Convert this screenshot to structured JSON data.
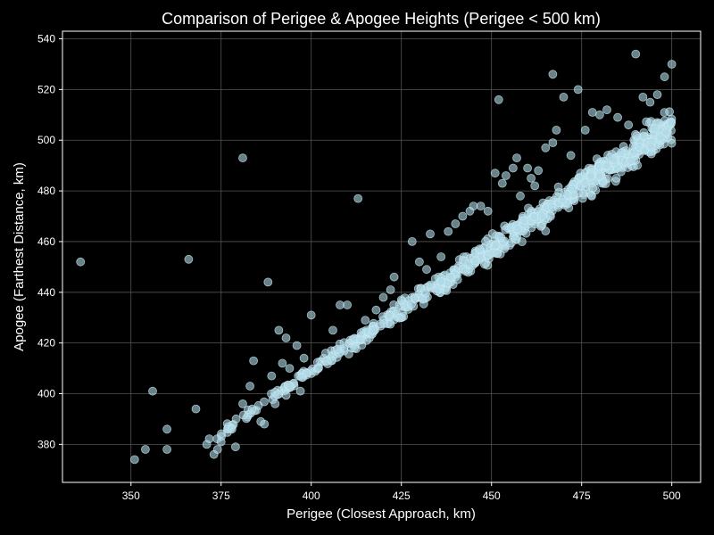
{
  "chart_data": {
    "type": "scatter",
    "title": "Comparison of Perigee & Apogee Heights (Perigee < 500 km)",
    "xlabel": "Perigee (Closest Approach, km)",
    "ylabel": "Apogee (Farthest Distance, km)",
    "xlim": [
      331,
      508
    ],
    "ylim": [
      365,
      543
    ],
    "xticks": [
      350,
      375,
      400,
      425,
      450,
      475,
      500
    ],
    "yticks": [
      380,
      400,
      420,
      440,
      460,
      480,
      500,
      520,
      540
    ],
    "grid": true,
    "colors": {
      "background": "#000000",
      "axes": "#ffffff",
      "grid": "#555555",
      "point_fill": "#add8e6",
      "point_stroke": "#d0ecf5"
    },
    "outliers": [
      [
        336,
        452
      ],
      [
        351,
        374
      ],
      [
        354,
        378
      ],
      [
        356,
        401
      ],
      [
        360,
        386
      ],
      [
        360,
        378
      ],
      [
        366,
        453
      ],
      [
        368,
        394
      ],
      [
        371,
        380
      ],
      [
        373,
        376
      ],
      [
        374,
        378
      ],
      [
        375,
        381
      ],
      [
        377,
        387
      ],
      [
        378,
        386
      ],
      [
        379,
        379
      ],
      [
        381,
        493
      ],
      [
        381,
        396
      ],
      [
        383,
        403
      ],
      [
        384,
        413
      ],
      [
        386,
        389
      ],
      [
        387,
        388
      ],
      [
        388,
        444
      ],
      [
        389,
        407
      ],
      [
        390,
        396
      ],
      [
        391,
        425
      ],
      [
        392,
        412
      ],
      [
        393,
        422
      ],
      [
        394,
        410
      ],
      [
        396,
        419
      ],
      [
        397,
        401
      ],
      [
        398,
        414
      ],
      [
        400,
        431
      ],
      [
        402,
        410
      ],
      [
        404,
        416
      ],
      [
        406,
        425
      ],
      [
        408,
        435
      ],
      [
        410,
        435
      ],
      [
        412,
        418
      ],
      [
        413,
        477
      ],
      [
        415,
        429
      ],
      [
        418,
        433
      ],
      [
        420,
        438
      ],
      [
        422,
        441
      ],
      [
        423,
        446
      ],
      [
        425,
        437
      ],
      [
        428,
        460
      ],
      [
        430,
        452
      ],
      [
        432,
        449
      ],
      [
        433,
        463
      ],
      [
        436,
        454
      ],
      [
        438,
        464
      ],
      [
        440,
        467
      ],
      [
        442,
        470
      ],
      [
        444,
        472
      ],
      [
        445,
        474
      ],
      [
        447,
        474
      ],
      [
        449,
        472
      ],
      [
        451,
        487
      ],
      [
        452,
        516
      ],
      [
        453,
        483
      ],
      [
        454,
        486
      ],
      [
        456,
        489
      ],
      [
        457,
        493
      ],
      [
        458,
        478
      ],
      [
        460,
        489
      ],
      [
        461,
        485
      ],
      [
        462,
        482
      ],
      [
        463,
        488
      ],
      [
        465,
        497
      ],
      [
        467,
        499
      ],
      [
        467,
        526
      ],
      [
        468,
        504
      ],
      [
        470,
        517
      ],
      [
        472,
        494
      ],
      [
        474,
        520
      ],
      [
        476,
        504
      ],
      [
        478,
        511
      ],
      [
        480,
        510
      ],
      [
        482,
        512
      ],
      [
        485,
        509
      ],
      [
        488,
        506
      ],
      [
        490,
        534
      ],
      [
        492,
        517
      ],
      [
        494,
        515
      ],
      [
        496,
        518
      ],
      [
        498,
        525
      ],
      [
        500,
        530
      ]
    ],
    "trend": {
      "x_range": [
        368,
        500
      ],
      "slope": 0.97,
      "intercept": 21,
      "spread": 5.5,
      "count": 800
    }
  }
}
